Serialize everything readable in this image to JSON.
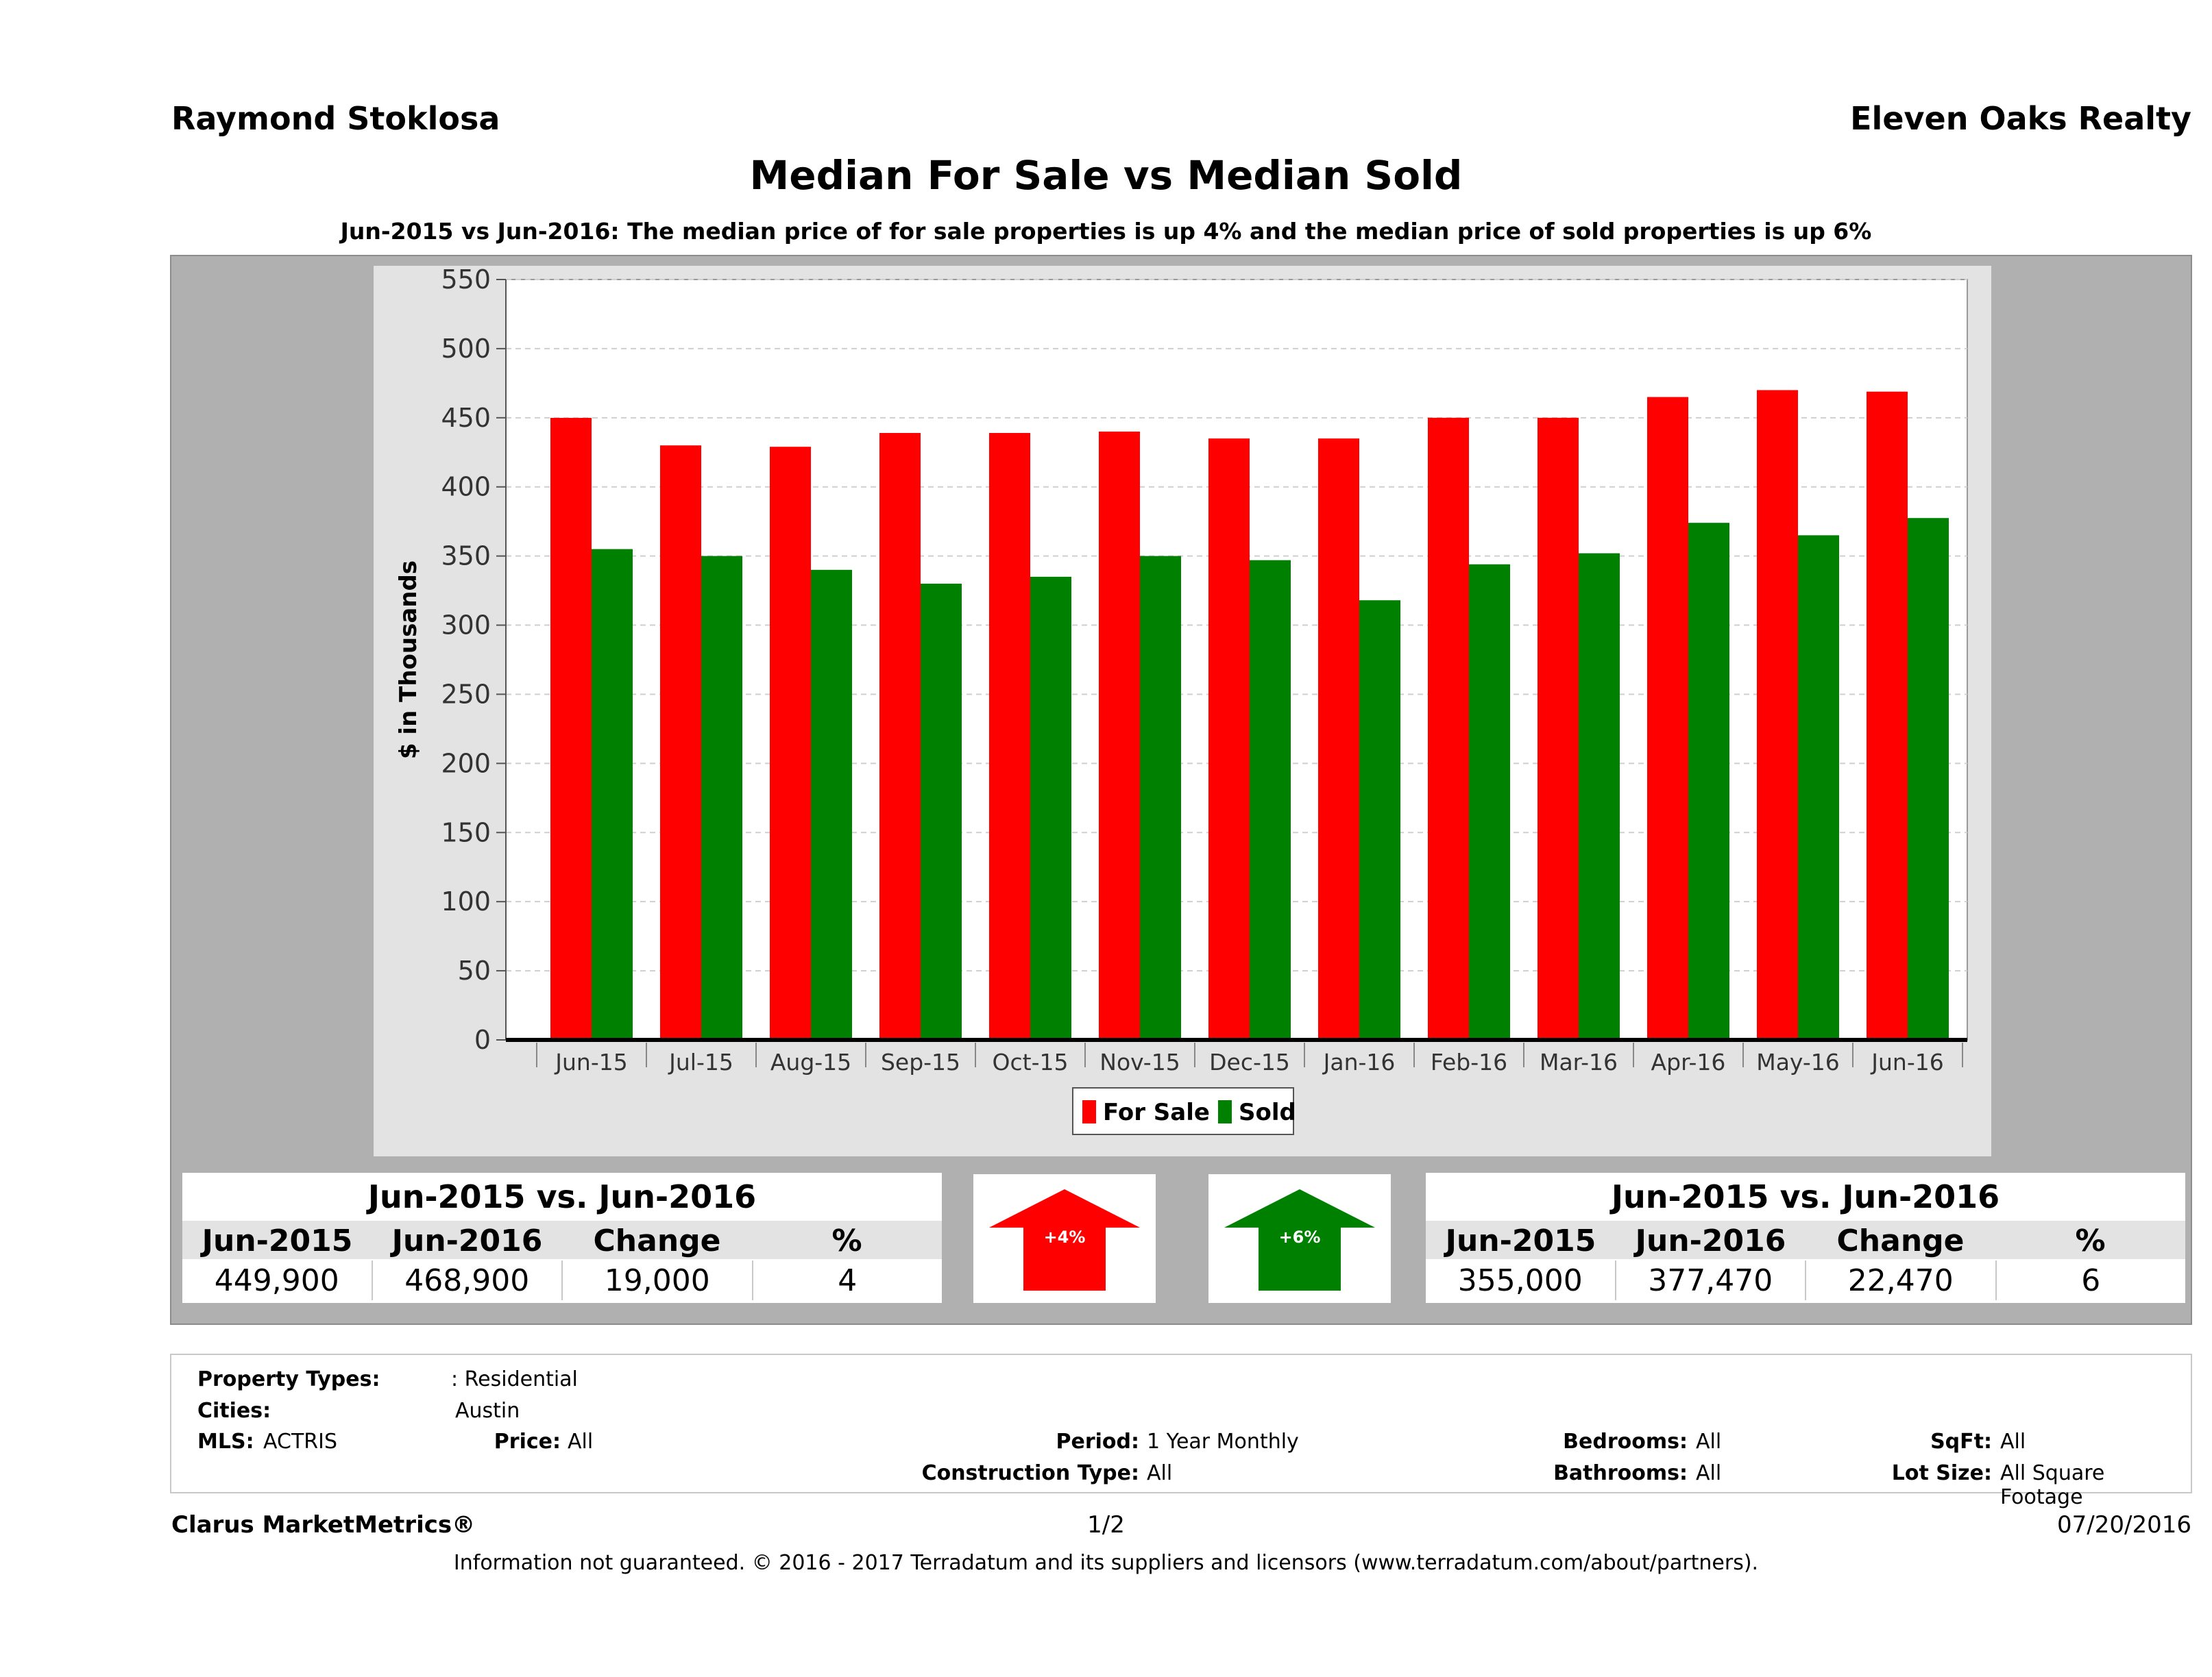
{
  "header": {
    "agent_name": "Raymond Stoklosa",
    "company": "Eleven Oaks Realty"
  },
  "title": "Median For Sale vs Median Sold",
  "subtitle": "Jun-2015 vs Jun-2016: The median price of for sale properties is up 4% and the median price of sold properties is up 6%",
  "chart_data": {
    "type": "bar",
    "categories": [
      "Jun-15",
      "Jul-15",
      "Aug-15",
      "Sep-15",
      "Oct-15",
      "Nov-15",
      "Dec-15",
      "Jan-16",
      "Feb-16",
      "Mar-16",
      "Apr-16",
      "May-16",
      "Jun-16"
    ],
    "series": [
      {
        "name": "For Sale",
        "color": "#ff0000",
        "values": [
          449.9,
          430,
          429,
          439,
          439,
          440,
          435,
          435,
          450,
          450,
          465,
          470,
          468.9
        ]
      },
      {
        "name": "Sold",
        "color": "#008000",
        "values": [
          355,
          350,
          340,
          330,
          335,
          350,
          347,
          318,
          344,
          352,
          374,
          365,
          377.47
        ]
      }
    ],
    "ylabel": "$ in Thousands",
    "yticks": [
      0,
      50,
      100,
      150,
      200,
      250,
      300,
      350,
      400,
      450,
      500,
      550
    ],
    "ylim": [
      0,
      550
    ],
    "grid": true,
    "legend_position": "bottom"
  },
  "for_sale_stats": {
    "heading": "Jun-2015 vs. Jun-2016",
    "columns": [
      "Jun-2015",
      "Jun-2016",
      "Change",
      "%"
    ],
    "values": [
      "449,900",
      "468,900",
      "19,000",
      "4"
    ],
    "arrow_label": "+4%",
    "arrow_color": "#ff0000"
  },
  "sold_stats": {
    "heading": "Jun-2015 vs. Jun-2016",
    "columns": [
      "Jun-2015",
      "Jun-2016",
      "Change",
      "%"
    ],
    "values": [
      "355,000",
      "377,470",
      "22,470",
      "6"
    ],
    "arrow_label": "+6%",
    "arrow_color": "#008000"
  },
  "filters": {
    "property_types_label": "Property Types:",
    "property_types_value": ": Residential",
    "cities_label": "Cities:",
    "cities_value": "Austin",
    "mls_label": "MLS:",
    "mls_value": "ACTRIS",
    "price_label": "Price:",
    "price_value": "All",
    "period_label": "Period:",
    "period_value": "1 Year Monthly",
    "construction_label": "Construction Type:",
    "construction_value": "All",
    "bedrooms_label": "Bedrooms:",
    "bedrooms_value": "All",
    "bathrooms_label": "Bathrooms:",
    "bathrooms_value": "All",
    "sqft_label": "SqFt:",
    "sqft_value": "All",
    "lotsize_label": "Lot Size:",
    "lotsize_value": "All Square Footage"
  },
  "footer": {
    "brand": "Clarus MarketMetrics®",
    "page": "1/2",
    "date": "07/20/2016",
    "disclaimer": "Information not guaranteed. © 2016 - 2017 Terradatum and its suppliers and licensors (www.terradatum.com/about/partners)."
  }
}
